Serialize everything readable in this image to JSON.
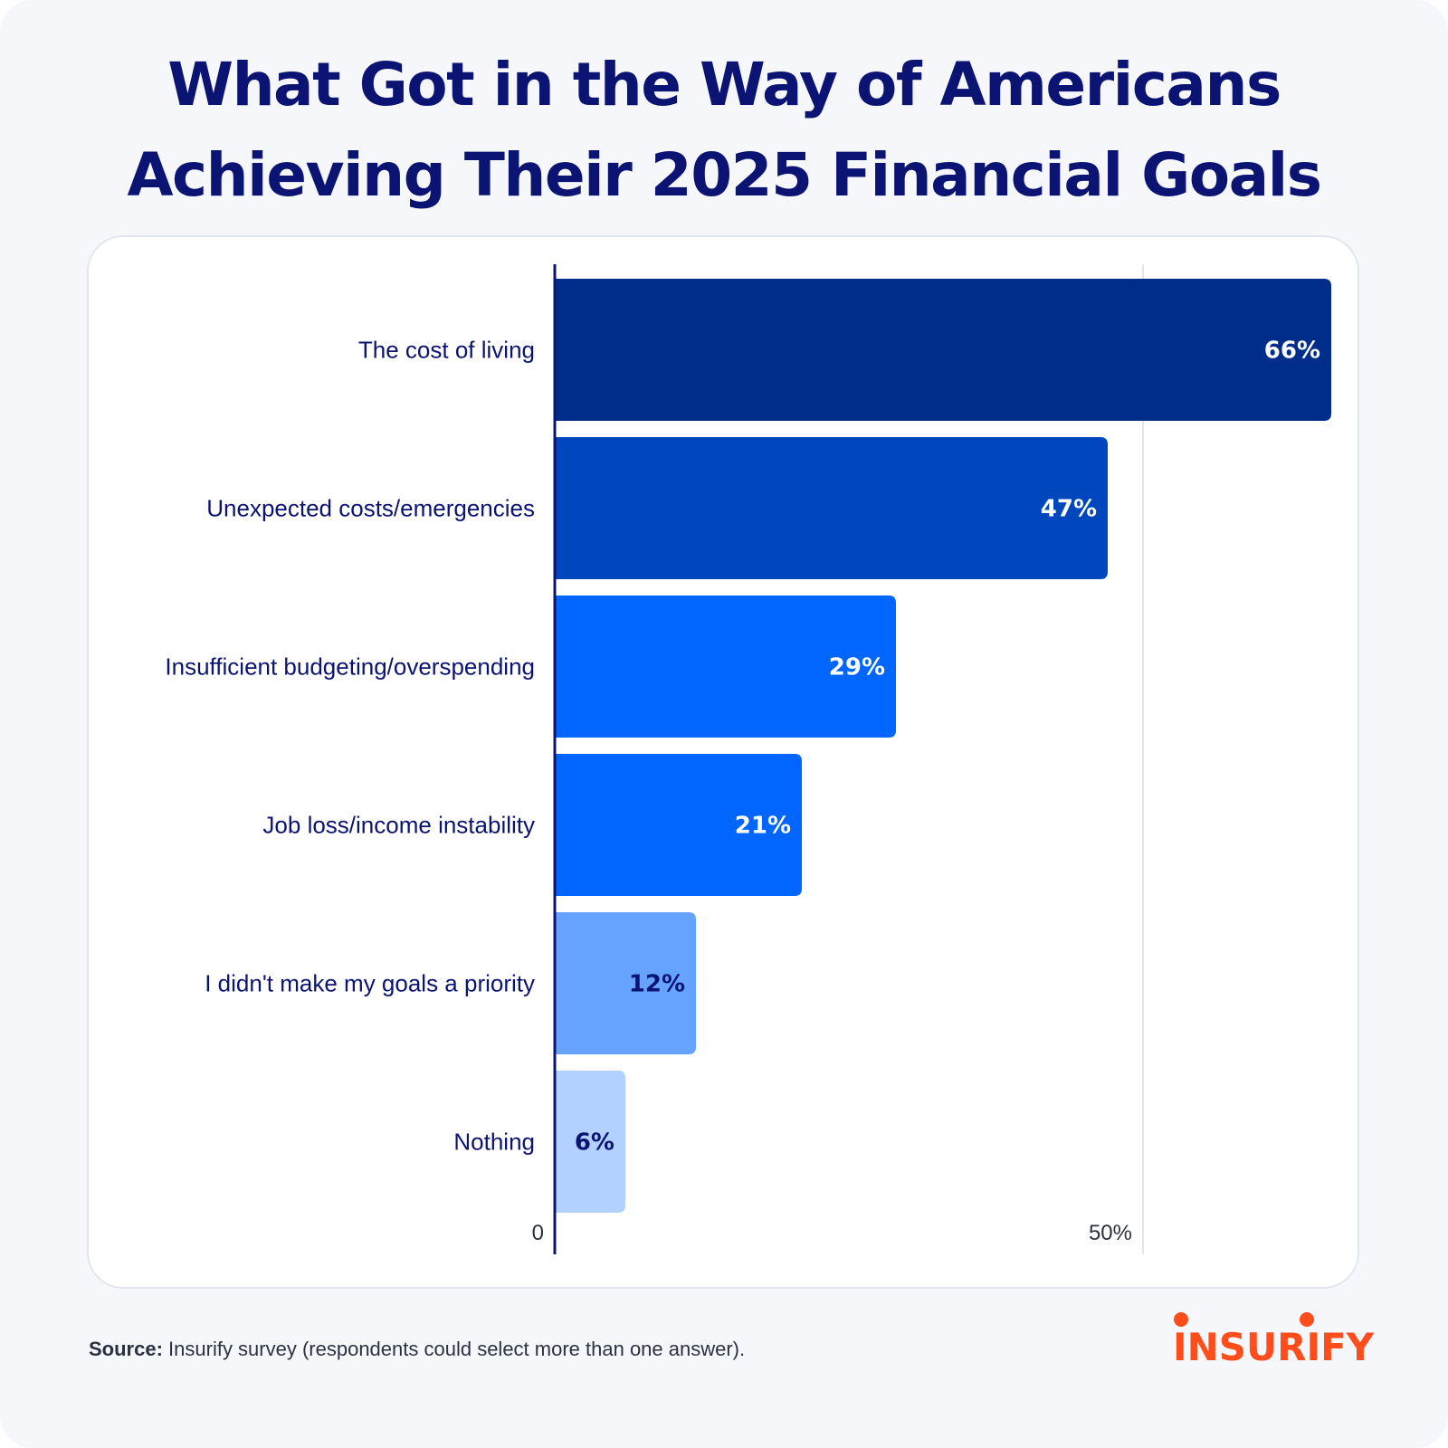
{
  "title": {
    "line1": "What Got in the Way of Americans",
    "line2": "Achieving Their 2025 Financial Goals"
  },
  "chart_data": {
    "type": "bar",
    "orientation": "horizontal",
    "title": "What Got in the Way of Americans Achieving Their 2025 Financial Goals",
    "categories": [
      "The cost of living",
      "Unexpected costs/emergencies",
      "Insufficient budgeting/overspending",
      "Job loss/income instability",
      "I didn't make my goals a priority",
      "Nothing"
    ],
    "values": [
      66,
      47,
      29,
      21,
      12,
      6
    ],
    "value_labels": [
      "66%",
      "47%",
      "29%",
      "21%",
      "12%",
      "6%"
    ],
    "bar_colors": [
      "#002d8a",
      "#0047bd",
      "#0066ff",
      "#0066ff",
      "#66a3ff",
      "#b3d1ff"
    ],
    "label_colors": [
      "#ffffff",
      "#ffffff",
      "#ffffff",
      "#ffffff",
      "#0b1473",
      "#0b1473"
    ],
    "xlim": [
      0,
      66
    ],
    "x_ticks": [
      0,
      50
    ],
    "x_tick_labels": [
      "0",
      "50%"
    ],
    "gridlines": [
      50
    ],
    "xlabel": "",
    "ylabel": ""
  },
  "footer": {
    "source_label": "Source:",
    "source_text": " Insurify survey (respondents could select more than one answer)."
  },
  "logo": {
    "text": "INSURIFY",
    "color": "#ff4d1c"
  },
  "colors": {
    "title": "#0b1473",
    "axis": "#0b1473",
    "gridline": "#e3e6ec",
    "background": "#f5f7fb"
  }
}
